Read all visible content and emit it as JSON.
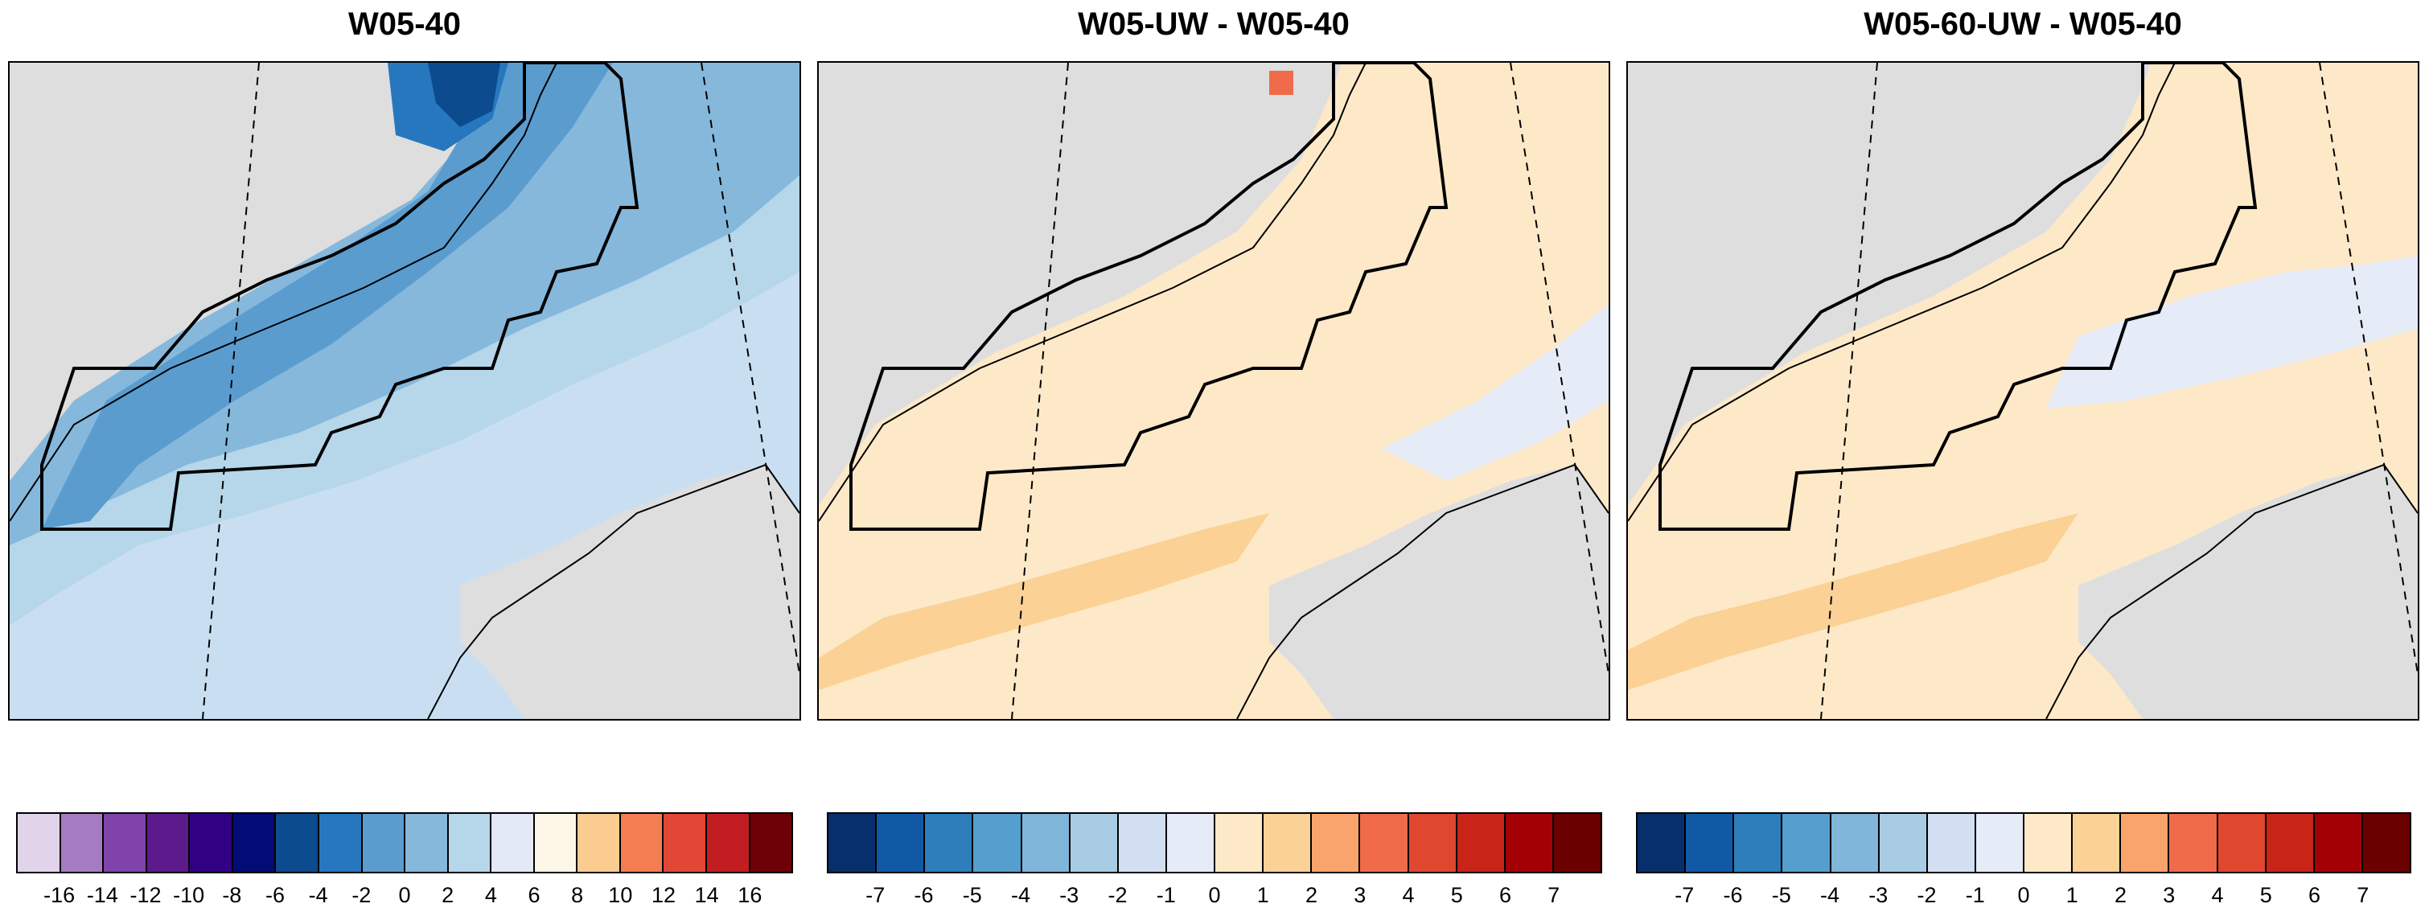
{
  "panels": [
    {
      "title": "W05-40",
      "field": "absolute"
    },
    {
      "title": "W05-UW - W05-40",
      "field": "diff1"
    },
    {
      "title": "W05-60-UW - W05-40",
      "field": "diff2"
    }
  ],
  "colorbars": [
    {
      "colors": [
        "#e0d3ea",
        "#a57cc2",
        "#7f43ab",
        "#5c1a8c",
        "#310184",
        "#020b76",
        "#0c4b8e",
        "#2777be",
        "#5b9ccf",
        "#86b8dc",
        "#b6d6ea",
        "#e3e9f7",
        "#fef6e6",
        "#fbcc90",
        "#f47d52",
        "#e24735",
        "#c21e22",
        "#6d0107"
      ],
      "labels": [
        "-16",
        "-14",
        "-12",
        "-10",
        "-8",
        "-6",
        "-4",
        "-2",
        "0",
        "2",
        "4",
        "6",
        "8",
        "10",
        "12",
        "14",
        "16"
      ]
    },
    {
      "colors": [
        "#072f6b",
        "#105aa5",
        "#2e7ebc",
        "#549fce",
        "#80b6da",
        "#a8cce4",
        "#d2def1",
        "#e6ebf8",
        "#fde9c8",
        "#fbd196",
        "#f8a46c",
        "#f06b4a",
        "#e0472f",
        "#c82418",
        "#a30006",
        "#6a0000"
      ],
      "labels": [
        "-7",
        "-6",
        "-5",
        "-4",
        "-3",
        "-2",
        "-1",
        "0",
        "1",
        "2",
        "3",
        "4",
        "5",
        "6",
        "7"
      ]
    },
    {
      "colors": [
        "#072f6b",
        "#105aa5",
        "#2e7ebc",
        "#549fce",
        "#80b6da",
        "#a8cce4",
        "#d2def1",
        "#e6ebf8",
        "#fde9c8",
        "#fbd196",
        "#f8a46c",
        "#f06b4a",
        "#e0472f",
        "#c82418",
        "#a30006",
        "#6a0000"
      ],
      "labels": [
        "-7",
        "-6",
        "-5",
        "-4",
        "-3",
        "-2",
        "-1",
        "0",
        "1",
        "2",
        "3",
        "4",
        "5",
        "6",
        "7"
      ]
    }
  ],
  "fill_colors": {
    "land": "#dedede",
    "absolute_band_1": "#c9dff1",
    "absolute_band_2": "#b6d6ea",
    "absolute_band_3": "#86b8dc",
    "absolute_band_4": "#5b9ccf",
    "absolute_band_5": "#2777be",
    "absolute_band_6": "#0c4b8e",
    "diff_base": "#fde9c8",
    "diff_warm": "#fbd196",
    "diff_cool": "#e6ebf8",
    "diff_hot": "#f06b4a"
  }
}
